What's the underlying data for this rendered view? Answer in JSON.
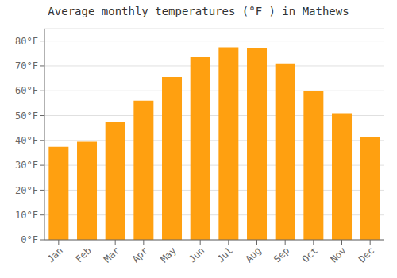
{
  "chart_data": {
    "type": "bar",
    "title": "Average monthly temperatures (°F ) in Mathews",
    "categories": [
      "Jan",
      "Feb",
      "Mar",
      "Apr",
      "May",
      "Jun",
      "Jul",
      "Aug",
      "Sep",
      "Oct",
      "Nov",
      "Dec"
    ],
    "values": [
      37.5,
      39.5,
      47.5,
      56.0,
      65.5,
      73.5,
      77.5,
      77.0,
      71.0,
      60.0,
      51.0,
      41.5
    ],
    "color": "#FFA010",
    "ylim": [
      0,
      85
    ],
    "yticks": [
      {
        "value": 0,
        "label": "0°F"
      },
      {
        "value": 10,
        "label": "10°F"
      },
      {
        "value": 20,
        "label": "20°F"
      },
      {
        "value": 30,
        "label": "30°F"
      },
      {
        "value": 40,
        "label": "40°F"
      },
      {
        "value": 50,
        "label": "50°F"
      },
      {
        "value": 60,
        "label": "60°F"
      },
      {
        "value": 70,
        "label": "70°F"
      },
      {
        "value": 80,
        "label": "80°F"
      }
    ],
    "grid": true
  }
}
